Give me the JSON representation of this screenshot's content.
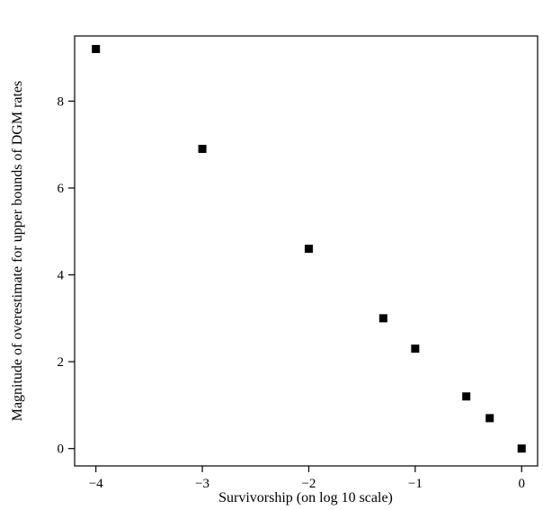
{
  "chart_data": {
    "type": "scatter",
    "title": "",
    "xlabel": "Survivorship (on log 10 scale)",
    "ylabel": "Magnitude of overestimate for upper bounds of DGM rates",
    "xlim": [
      -4.2,
      0.15
    ],
    "ylim": [
      -0.4,
      9.5
    ],
    "xticks": [
      -4,
      -3,
      -2,
      -1,
      0
    ],
    "yticks": [
      0,
      2,
      4,
      6,
      8
    ],
    "xtick_labels": [
      "−4",
      "−3",
      "−2",
      "−1",
      "0"
    ],
    "ytick_labels": [
      "0",
      "2",
      "4",
      "6",
      "8"
    ],
    "grid": false,
    "marker": "square",
    "marker_color": "#000000",
    "points": [
      {
        "x": -4.0,
        "y": 9.2
      },
      {
        "x": -3.0,
        "y": 6.9
      },
      {
        "x": -2.0,
        "y": 4.6
      },
      {
        "x": -1.3,
        "y": 3.0
      },
      {
        "x": -1.0,
        "y": 2.3
      },
      {
        "x": -0.52,
        "y": 1.2
      },
      {
        "x": -0.3,
        "y": 0.7
      },
      {
        "x": 0.0,
        "y": 0.0
      }
    ]
  }
}
